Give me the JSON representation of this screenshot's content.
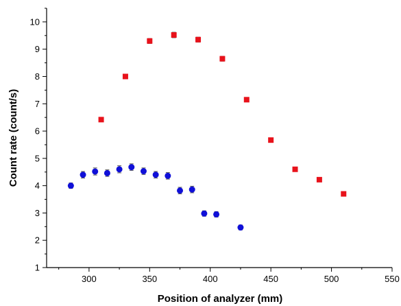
{
  "chart_data": {
    "type": "scatter",
    "title": "",
    "xlabel": "Position of analyzer (mm)",
    "ylabel": "Count rate (count/s)",
    "xlim": [
      265,
      550
    ],
    "ylim": [
      1,
      10.5
    ],
    "xticks": [
      300,
      350,
      400,
      450,
      500,
      550
    ],
    "yticks": [
      1,
      2,
      3,
      4,
      5,
      6,
      7,
      8,
      9,
      10
    ],
    "grid": false,
    "legend": "none",
    "series": [
      {
        "marker": "square",
        "color": "#e8121b",
        "x": [
          310,
          330,
          350,
          370,
          390,
          410,
          430,
          450,
          470,
          490,
          510
        ],
        "y": [
          6.42,
          8.0,
          9.3,
          9.52,
          9.35,
          8.65,
          7.15,
          5.67,
          4.6,
          4.22,
          3.7
        ],
        "err": [
          0.07,
          0.08,
          0.09,
          0.1,
          0.09,
          0.09,
          0.08,
          0.07,
          0.06,
          0.06,
          0.06
        ]
      },
      {
        "marker": "circle",
        "color": "#1010d8",
        "x": [
          285,
          295,
          305,
          315,
          325,
          335,
          345,
          355,
          365,
          375,
          385,
          395,
          405,
          425
        ],
        "y": [
          4.0,
          4.4,
          4.52,
          4.46,
          4.6,
          4.68,
          4.53,
          4.4,
          4.36,
          3.82,
          3.86,
          2.98,
          2.95,
          2.47
        ],
        "err": [
          0.1,
          0.12,
          0.13,
          0.12,
          0.13,
          0.12,
          0.12,
          0.12,
          0.12,
          0.12,
          0.12,
          0.1,
          0.1,
          0.09
        ]
      }
    ]
  }
}
